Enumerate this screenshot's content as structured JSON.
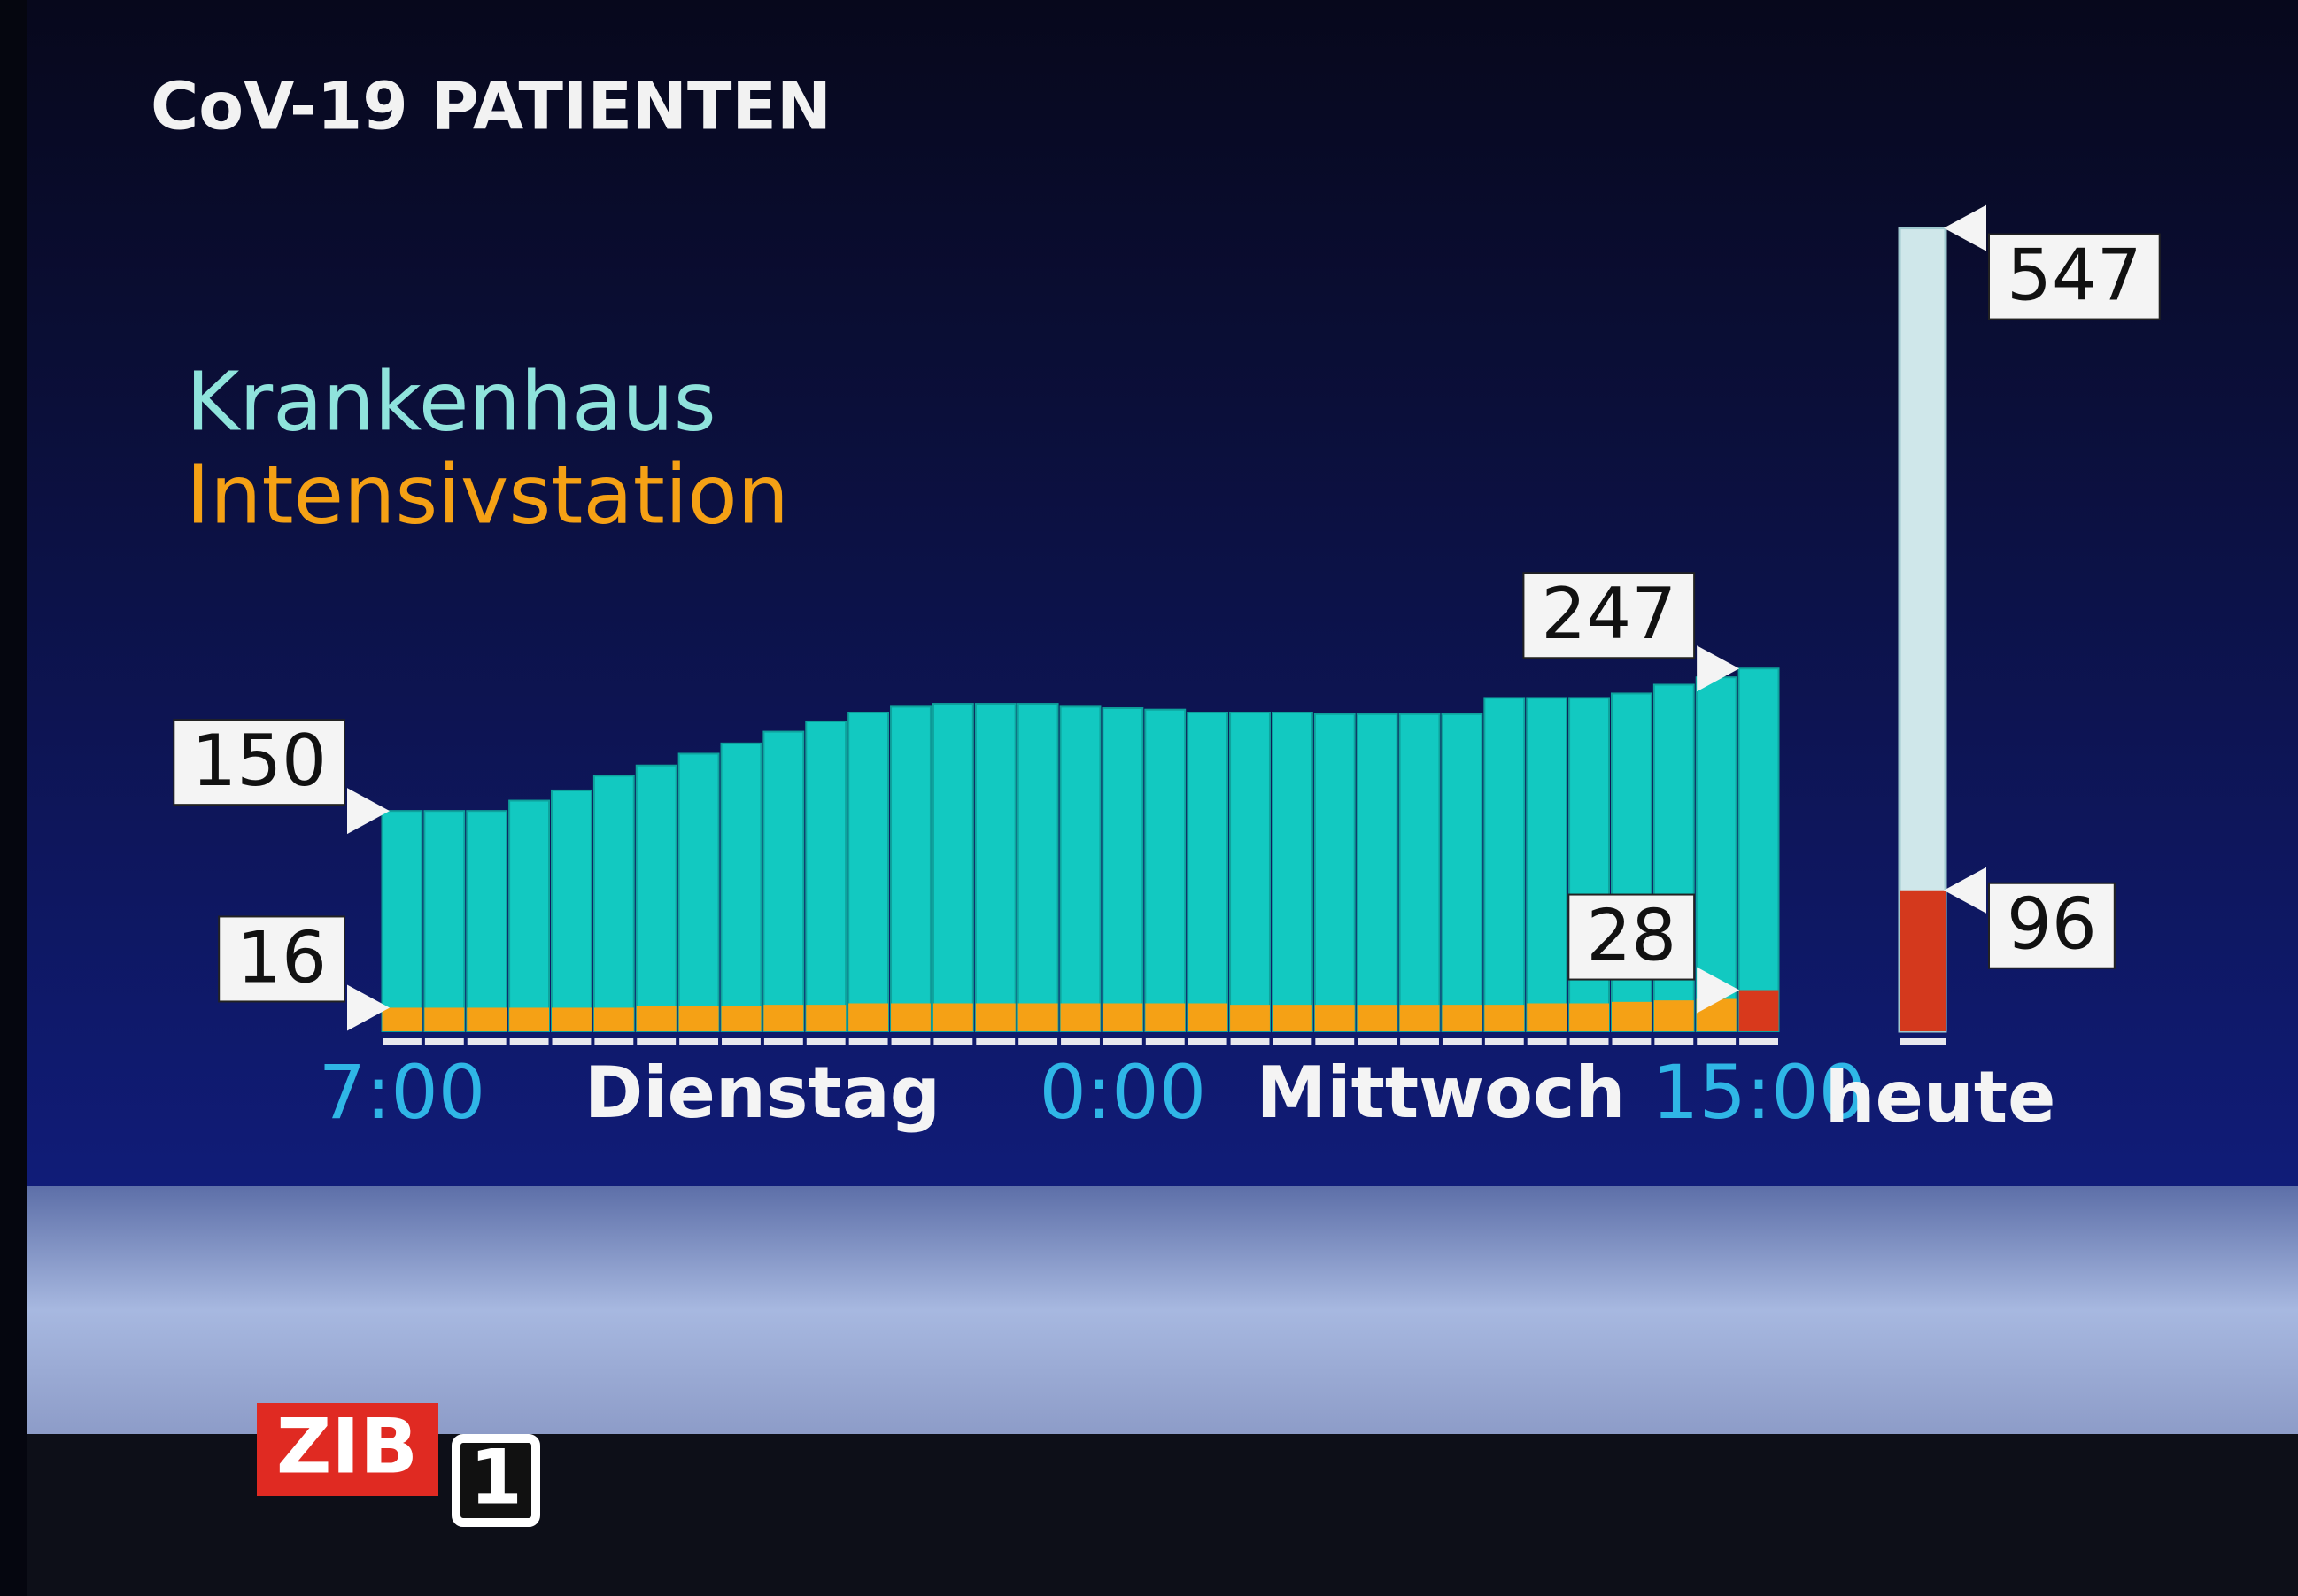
{
  "chart_data": {
    "type": "bar",
    "title": "CoV-19 PATIENTEN",
    "categories": [
      "7:00",
      null,
      null,
      null,
      null,
      null,
      null,
      null,
      null,
      null,
      null,
      null,
      null,
      null,
      null,
      null,
      null,
      "0:00",
      null,
      null,
      null,
      null,
      null,
      null,
      null,
      null,
      null,
      null,
      null,
      null,
      null,
      null,
      "15:00"
    ],
    "day_labels": [
      "Dienstag",
      "Mittwoch"
    ],
    "series": [
      {
        "name": "Krankenhaus",
        "color": "#12c9c1",
        "values": [
          150,
          150,
          150,
          157,
          164,
          174,
          181,
          189,
          196,
          204,
          211,
          217,
          221,
          223,
          223,
          223,
          221,
          220,
          219,
          217,
          217,
          217,
          216,
          216,
          216,
          216,
          227,
          227,
          227,
          230,
          236,
          241,
          247
        ]
      },
      {
        "name": "Intensivstation",
        "color": "#f5a115",
        "highlight_color": "#d8391c",
        "values": [
          16,
          16,
          16,
          16,
          16,
          16,
          17,
          17,
          17,
          18,
          18,
          19,
          19,
          19,
          19,
          19,
          19,
          19,
          19,
          19,
          18,
          18,
          18,
          18,
          18,
          18,
          18,
          19,
          19,
          20,
          21,
          22,
          28
        ]
      }
    ],
    "summary": {
      "label": "heute",
      "values": [
        547,
        96
      ],
      "colors": [
        "#cfe7ea",
        "#d4391d"
      ]
    },
    "ylim": [
      0,
      560
    ],
    "logo": {
      "name": "ZIB",
      "channel": "1"
    }
  }
}
